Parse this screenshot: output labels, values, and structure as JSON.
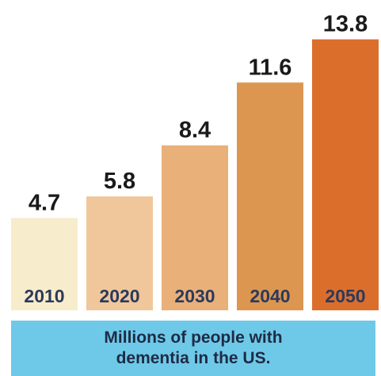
{
  "chart_data": {
    "type": "bar",
    "categories": [
      "2010",
      "2020",
      "2030",
      "2040",
      "2050"
    ],
    "values": [
      4.7,
      5.8,
      8.4,
      11.6,
      13.8
    ],
    "value_labels": [
      "4.7",
      "5.8",
      "8.4",
      "11.6",
      "13.8"
    ],
    "bar_colors": [
      "#f7eccb",
      "#f0c79a",
      "#e9b07a",
      "#dc9650",
      "#dc6e2c"
    ],
    "ylim": [
      0,
      15.4
    ],
    "grid": false,
    "legend": "none"
  },
  "caption": {
    "line1": "Millions of people with",
    "line2": "dementia in the US."
  },
  "colors": {
    "caption_bg": "#6ec9e8",
    "category_text": "#2b3a5c",
    "value_text": "#1a1a1a"
  }
}
